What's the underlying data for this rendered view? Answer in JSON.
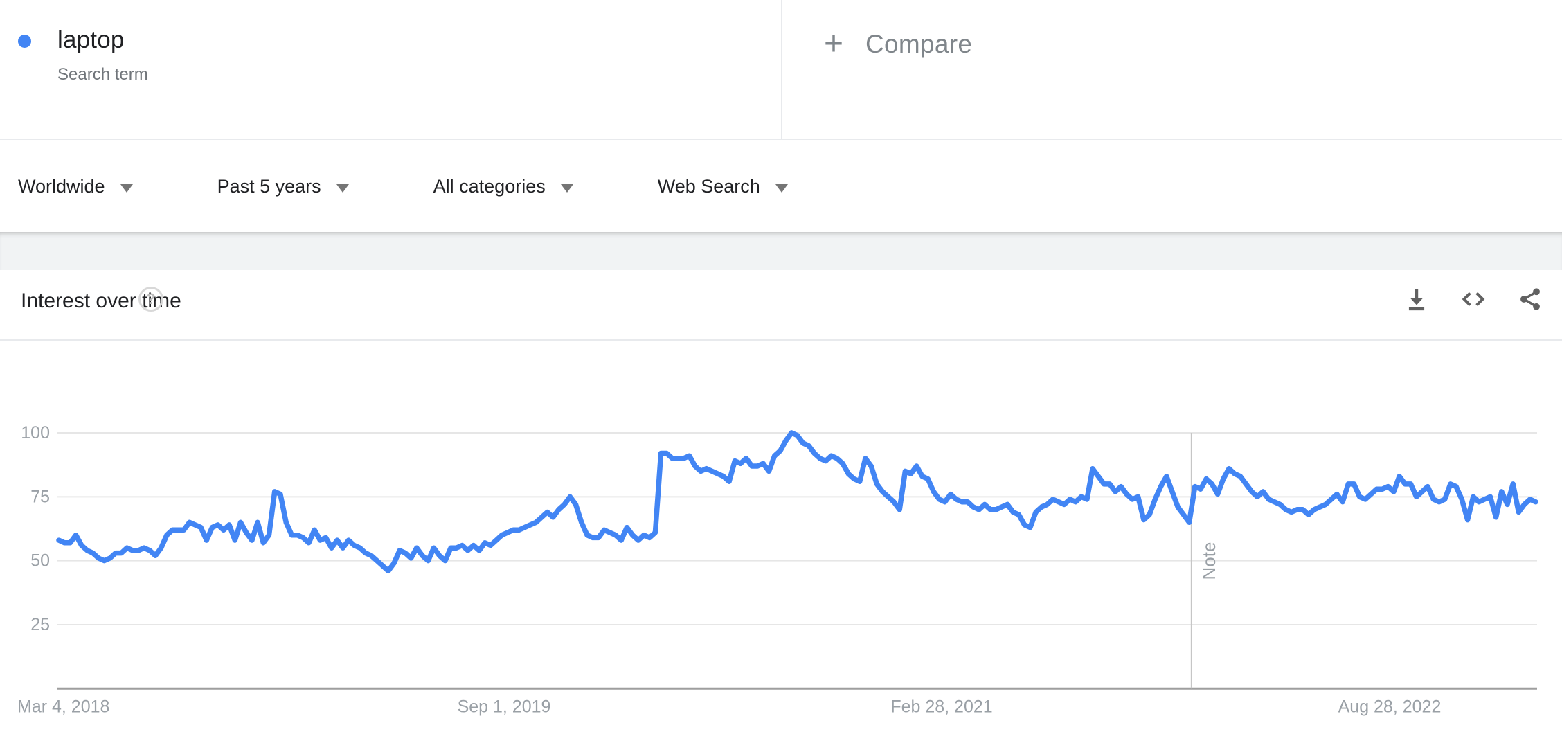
{
  "term_card": {
    "term": "laptop",
    "type_label": "Search term",
    "dot_color": "#4285f4"
  },
  "compare": {
    "plus": "+",
    "label": "Compare"
  },
  "filters": [
    {
      "label": "Worldwide"
    },
    {
      "label": "Past 5 years"
    },
    {
      "label": "All categories"
    },
    {
      "label": "Web Search"
    }
  ],
  "chart_header": {
    "title": "Interest over time",
    "help_glyph": "?",
    "actions": [
      "download-icon",
      "embed-icon",
      "share-icon"
    ]
  },
  "chart_data": {
    "type": "line",
    "title": "Interest over time",
    "x_tick_labels": [
      "Mar 4, 2018",
      "Sep 1, 2019",
      "Feb 28, 2021",
      "Aug 28, 2022"
    ],
    "y_ticks": [
      100,
      75,
      50,
      25
    ],
    "ylim": [
      0,
      100
    ],
    "grid": true,
    "legend": "none",
    "annotation": {
      "label": "Note",
      "x_index": 199.4
    },
    "line_color": "#4285f4",
    "grid_color": "#e6e6e6",
    "axis_color": "#9e9e9e",
    "tick_label_color": "#9aa0a6",
    "series": [
      {
        "name": "laptop",
        "color": "#4285f4",
        "values": [
          58,
          57,
          57,
          60,
          56,
          54,
          53,
          51,
          50,
          51,
          53,
          53,
          55,
          54,
          54,
          55,
          54,
          52,
          55,
          60,
          62,
          62,
          62,
          65,
          64,
          63,
          58,
          63,
          64,
          62,
          64,
          58,
          65,
          61,
          58,
          65,
          57,
          60,
          77,
          76,
          65,
          60,
          60,
          59,
          57,
          62,
          58,
          59,
          55,
          58,
          55,
          58,
          56,
          55,
          53,
          52,
          50,
          48,
          46,
          49,
          54,
          53,
          51,
          55,
          52,
          50,
          55,
          52,
          50,
          55,
          55,
          56,
          54,
          56,
          54,
          57,
          56,
          58,
          60,
          61,
          62,
          62,
          63,
          64,
          65,
          67,
          69,
          67,
          70,
          72,
          75,
          72,
          65,
          60,
          59,
          59,
          62,
          61,
          60,
          58,
          63,
          60,
          58,
          60,
          59,
          61,
          92,
          92,
          90,
          90,
          90,
          91,
          87,
          85,
          86,
          85,
          84,
          83,
          81,
          89,
          88,
          90,
          87,
          87,
          88,
          85,
          91,
          93,
          97,
          100,
          99,
          96,
          95,
          92,
          90,
          89,
          91,
          90,
          88,
          84,
          82,
          81,
          90,
          87,
          80,
          77,
          75,
          73,
          70,
          85,
          84,
          87,
          83,
          82,
          77,
          74,
          73,
          76,
          74,
          73,
          73,
          71,
          70,
          72,
          70,
          70,
          71,
          72,
          69,
          68,
          64,
          63,
          69,
          71,
          72,
          74,
          73,
          72,
          74,
          73,
          75,
          74,
          86,
          83,
          80,
          80,
          77,
          79,
          76,
          74,
          75,
          66,
          68,
          74,
          79,
          83,
          77,
          71,
          68,
          65,
          79,
          78,
          82,
          80,
          76,
          82,
          86,
          84,
          83,
          80,
          77,
          75,
          77,
          74,
          73,
          72,
          70,
          69,
          70,
          70,
          68,
          70,
          71,
          72,
          74,
          76,
          73,
          80,
          80,
          75,
          74,
          76,
          78,
          78,
          79,
          77,
          83,
          80,
          80,
          75,
          77,
          79,
          74,
          73,
          74,
          80,
          79,
          74,
          66,
          75,
          73,
          74,
          75,
          67,
          77,
          72,
          80,
          69,
          72,
          74,
          73
        ]
      }
    ]
  }
}
